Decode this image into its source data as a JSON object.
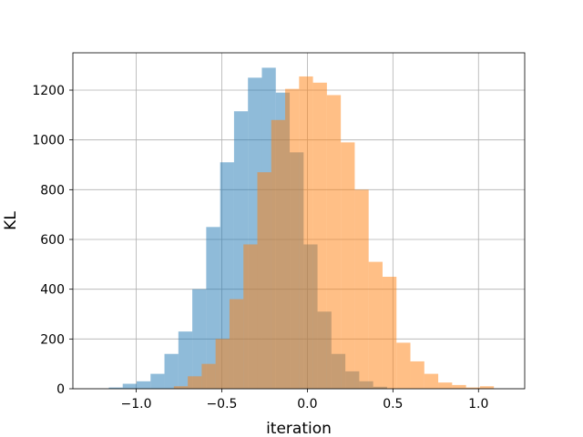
{
  "chart_data": {
    "type": "bar",
    "xlabel": "iteration",
    "ylabel": "KL",
    "xlim": [
      -1.37,
      1.27
    ],
    "ylim": [
      0,
      1350
    ],
    "xticks": [
      -1.0,
      -0.5,
      0.0,
      0.5,
      1.0
    ],
    "xtick_labels": [
      "−1.0",
      "−0.5",
      "0.0",
      "0.5",
      "1.0"
    ],
    "yticks": [
      0,
      200,
      400,
      600,
      800,
      1000,
      1200
    ],
    "ytick_labels": [
      "0",
      "200",
      "400",
      "600",
      "800",
      "1000",
      "1200"
    ],
    "grid": true,
    "series": [
      {
        "color": "#1f77b4",
        "opacity": 0.5,
        "bin_start": -1.16,
        "bin_width": 0.0813,
        "values": [
          5,
          20,
          30,
          60,
          140,
          230,
          400,
          650,
          910,
          1115,
          1250,
          1290,
          1190,
          950,
          580,
          310,
          140,
          70,
          30,
          8
        ]
      },
      {
        "color": "#ff7f0e",
        "opacity": 0.5,
        "bin_start": -0.78,
        "bin_width": 0.0813,
        "values": [
          10,
          50,
          100,
          200,
          360,
          580,
          870,
          1080,
          1205,
          1255,
          1230,
          1180,
          990,
          800,
          510,
          450,
          185,
          110,
          60,
          25,
          15,
          5,
          10
        ]
      }
    ]
  }
}
